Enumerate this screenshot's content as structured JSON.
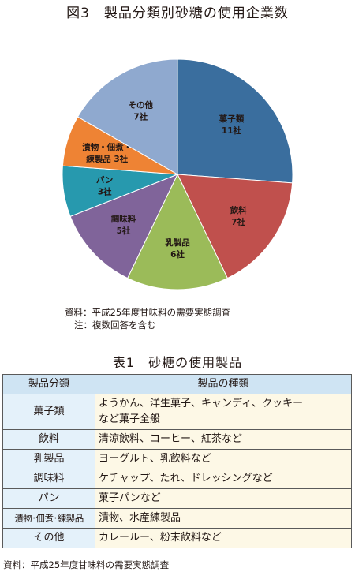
{
  "figure": {
    "title": "図3　製品分類別砂糖の使用企業数"
  },
  "chart_data": {
    "type": "pie",
    "categories": [
      "菓子類",
      "飲料",
      "乳製品",
      "調味料",
      "パン",
      "漬物・佃煮・練製品",
      "その他"
    ],
    "values": [
      11,
      7,
      6,
      5,
      3,
      3,
      7
    ],
    "slice_labels": [
      [
        "菓子類",
        "11社"
      ],
      [
        "飲料",
        "7社"
      ],
      [
        "乳製品",
        "6社"
      ],
      [
        "調味料",
        "5社"
      ],
      [
        "パン",
        "3社"
      ],
      [
        "漬物・佃煮・",
        "練製品 3社"
      ],
      [
        "その他",
        "7社"
      ]
    ],
    "colors": [
      "#3a6e9e",
      "#c0504d",
      "#9bbb59",
      "#80649a",
      "#2799ae",
      "#ee8334",
      "#8fa9cf"
    ],
    "start": "12 o'clock",
    "direction": "clockwise"
  },
  "notes": {
    "source": "資料：平成25年度甘味料の需要実態調査",
    "note": "注：複数回答を含む"
  },
  "table": {
    "title": "表1　砂糖の使用製品",
    "headers": [
      "製品分類",
      "製品の種類"
    ],
    "rows": [
      {
        "category": "菓子類",
        "products": [
          "ようかん、洋生菓子、キャンディ、クッキー",
          "など菓子全般"
        ]
      },
      {
        "category": "飲料",
        "products": [
          "清涼飲料、コーヒー、紅茶など"
        ]
      },
      {
        "category": "乳製品",
        "products": [
          "ヨーグルト、乳飲料など"
        ]
      },
      {
        "category": "調味料",
        "products": [
          "ケチャップ、たれ、ドレッシングなど"
        ]
      },
      {
        "category": "パン",
        "products": [
          "菓子パンなど"
        ]
      },
      {
        "category": "漬物･佃煮･練製品",
        "products": [
          "漬物、水産練製品"
        ]
      },
      {
        "category": "その他",
        "products": [
          "カレールー、粉末飲料など"
        ]
      }
    ],
    "source": "資料：平成25年度甘味料の需要実態調査"
  }
}
